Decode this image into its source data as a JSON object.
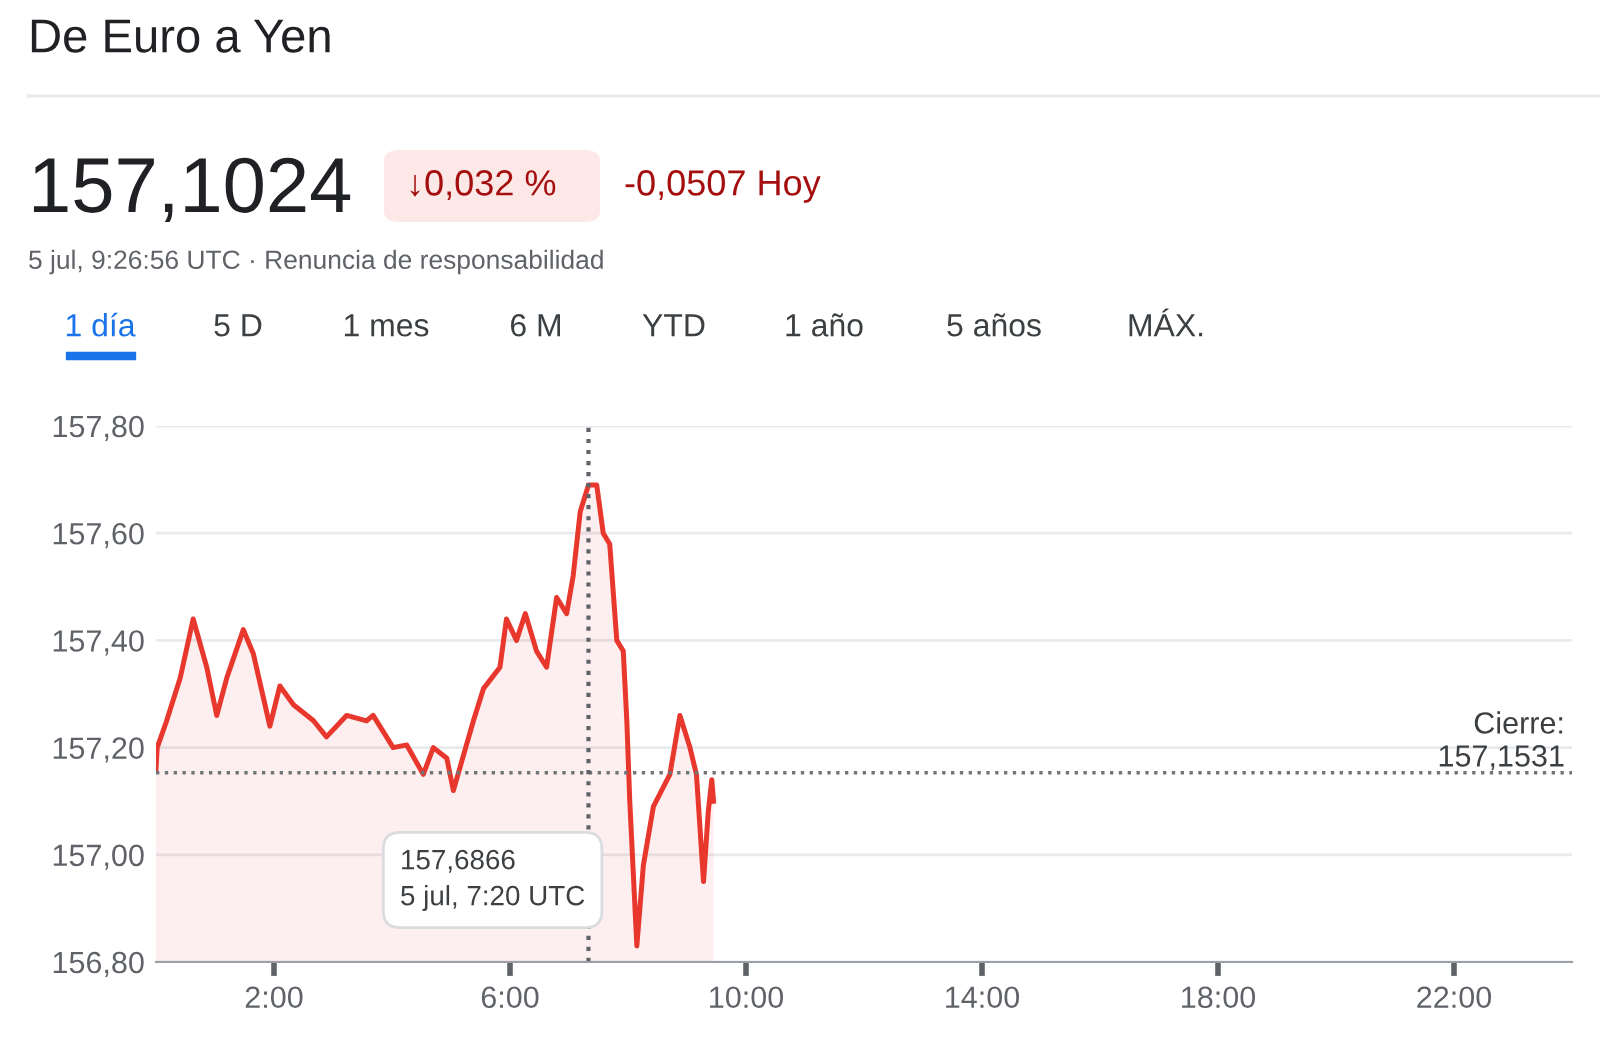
{
  "chart_data": {
    "type": "area",
    "title": "De Euro a Yen",
    "x": [
      0.0,
      0.02,
      0.18,
      0.41,
      0.63,
      0.86,
      1.03,
      1.2,
      1.48,
      1.65,
      1.93,
      2.1,
      2.33,
      2.67,
      2.89,
      3.23,
      3.57,
      3.68,
      4.02,
      4.25,
      4.53,
      4.7,
      4.93,
      5.04,
      5.38,
      5.55,
      5.83,
      5.94,
      6.11,
      6.26,
      6.45,
      6.62,
      6.79,
      6.96,
      7.07,
      7.19,
      7.33,
      7.47,
      7.58,
      7.69,
      7.81,
      7.92,
      7.98,
      8.03,
      8.15,
      8.26,
      8.43,
      8.71,
      8.88,
      9.05,
      9.16,
      9.28,
      9.36,
      9.42,
      9.45
    ],
    "series": [
      {
        "color": "#e8382e",
        "values": [
          157.16,
          157.2,
          157.25,
          157.33,
          157.44,
          157.35,
          157.26,
          157.33,
          157.42,
          157.375,
          157.24,
          157.315,
          157.28,
          157.25,
          157.22,
          157.26,
          157.25,
          157.26,
          157.2,
          157.205,
          157.15,
          157.2,
          157.18,
          157.12,
          157.25,
          157.31,
          157.35,
          157.44,
          157.4,
          157.45,
          157.38,
          157.35,
          157.48,
          157.45,
          157.52,
          157.64,
          157.69,
          157.69,
          157.6,
          157.58,
          157.4,
          157.38,
          157.25,
          157.1,
          156.83,
          156.98,
          157.09,
          157.15,
          157.26,
          157.2,
          157.15,
          156.95,
          157.08,
          157.14,
          157.1
        ]
      }
    ],
    "xlim": [
      0,
      24
    ],
    "xticks": [
      {
        "value": 2,
        "label": "2:00"
      },
      {
        "value": 6,
        "label": "6:00"
      },
      {
        "value": 10,
        "label": "10:00"
      },
      {
        "value": 14,
        "label": "14:00"
      },
      {
        "value": 18,
        "label": "18:00"
      },
      {
        "value": 22,
        "label": "22:00"
      }
    ],
    "ylim": [
      156.8,
      157.8
    ],
    "yticks": [
      {
        "value": 156.8,
        "label": "156,80"
      },
      {
        "value": 157.0,
        "label": "157,00"
      },
      {
        "value": 157.2,
        "label": "157,20"
      },
      {
        "value": 157.4,
        "label": "157,40"
      },
      {
        "value": 157.6,
        "label": "157,60"
      },
      {
        "value": 157.8,
        "label": "157,80"
      }
    ],
    "grid": "y",
    "ref_lines": [
      {
        "axis": "y",
        "value": 157.1531,
        "label": "Cierre:\n157,1531",
        "color": "#70757a",
        "line_style": "dotted"
      },
      {
        "axis": "x",
        "value": 7.33,
        "color": "#5f6368",
        "line_style": "dotted"
      }
    ],
    "annotations": [
      "157,1024",
      "↓0,032 %",
      "-0,0507 Hoy",
      "5 jul, 9:26:56 UTC · Renuncia de responsabilidad",
      "1 día",
      "5 D",
      "1 mes",
      "6 M",
      "YTD",
      "1 año",
      "5 años",
      "MÁX.",
      "157,6866\n5 jul, 7:20 UTC"
    ]
  }
}
